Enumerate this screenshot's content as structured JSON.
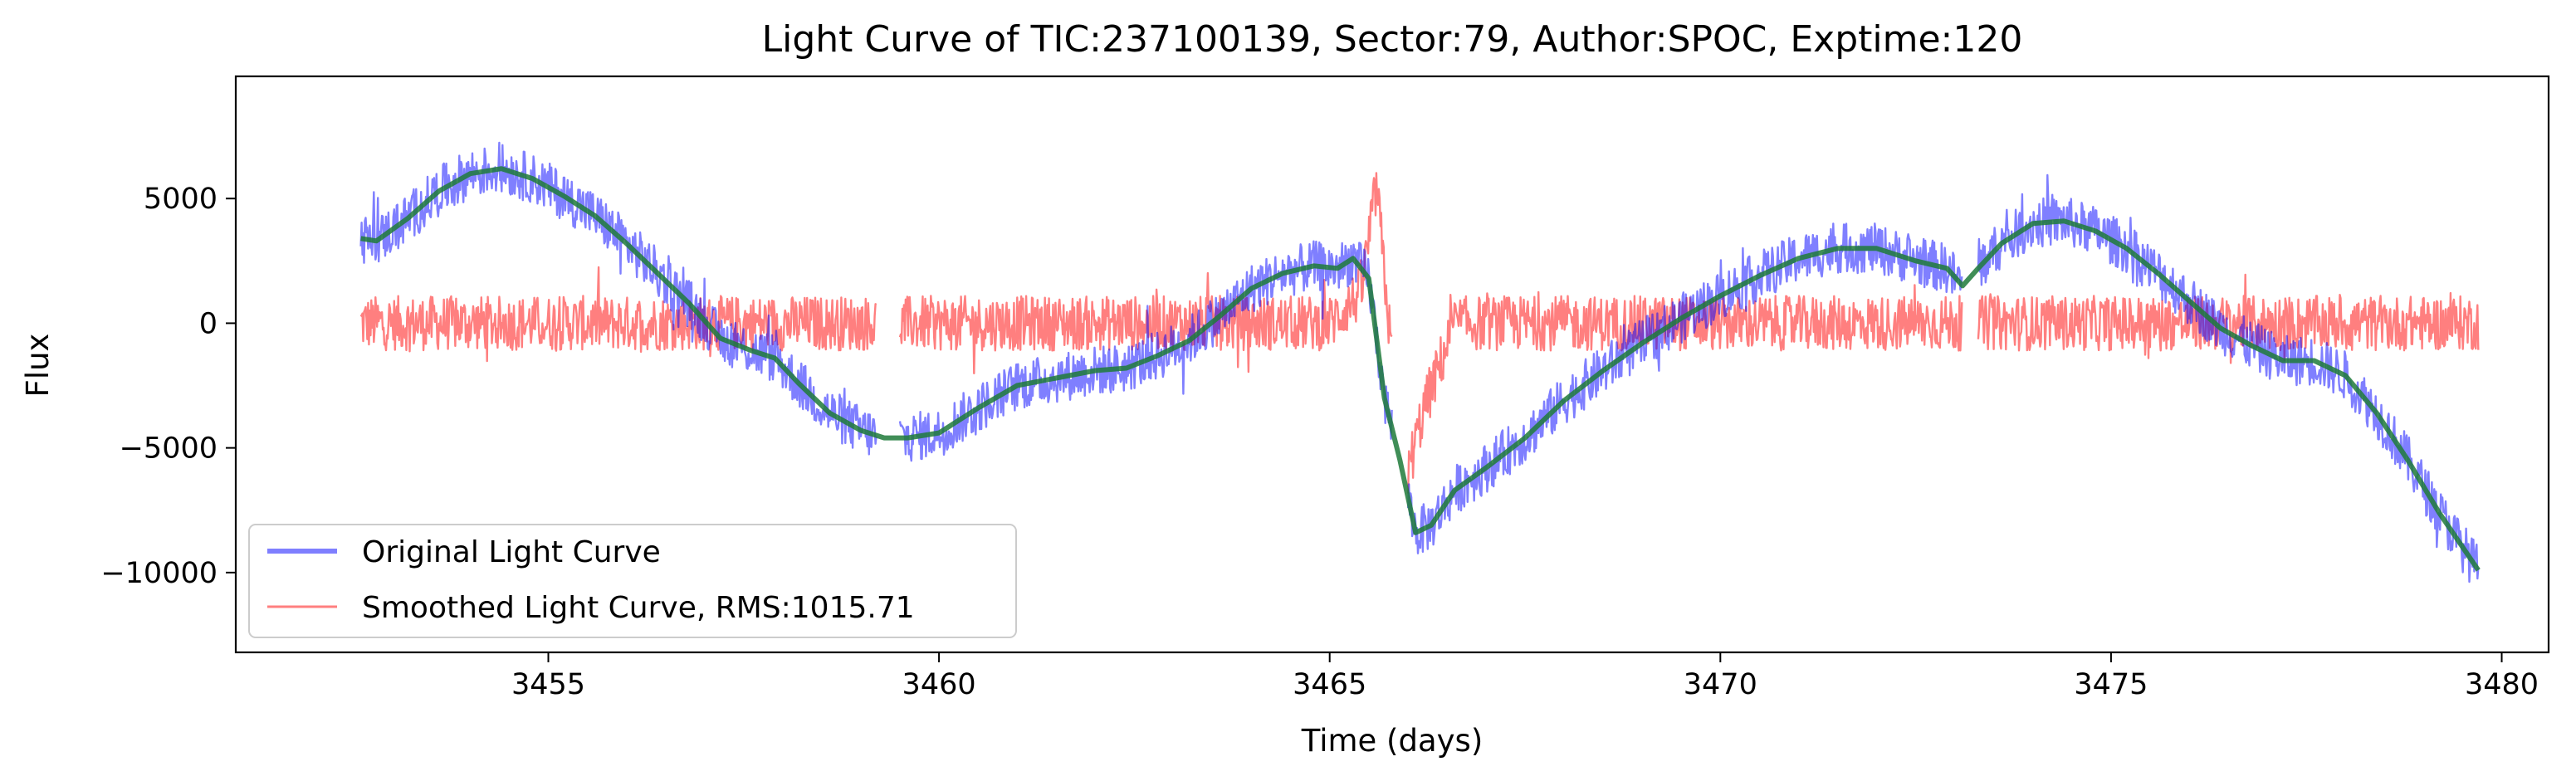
{
  "chart_data": {
    "type": "line",
    "title": "Light Curve of TIC:237100139, Sector:79, Author:SPOC, Exptime:120",
    "xlabel": "Time (days)",
    "ylabel": "Flux",
    "xlim": [
      3451.0,
      3480.6
    ],
    "ylim": [
      -13200,
      9900
    ],
    "xticks": [
      3455,
      3460,
      3465,
      3470,
      3475,
      3480
    ],
    "xtick_labels": [
      "3455",
      "3460",
      "3465",
      "3470",
      "3475",
      "3480"
    ],
    "yticks": [
      5000,
      0,
      -5000,
      -10000
    ],
    "ytick_labels": [
      "5000",
      "0",
      "−5000",
      "−10000"
    ],
    "grid": false,
    "legend_position": "lower-left",
    "series": [
      {
        "name": "Original Light Curve",
        "color": "#0000ff",
        "opacity": 0.5,
        "noise_band": 1000,
        "x": [
          3452.6,
          3452.8,
          3453.2,
          3453.6,
          3454.0,
          3454.4,
          3454.8,
          3455.2,
          3455.6,
          3456.0,
          3456.4,
          3456.8,
          3457.2,
          3457.6,
          3457.9,
          3458.2,
          3458.6,
          3459.0,
          3459.3,
          3459.6,
          3460.0,
          3460.5,
          3461.0,
          3461.5,
          3462.0,
          3462.4,
          3462.8,
          3463.2,
          3463.6,
          3464.0,
          3464.4,
          3464.8,
          3465.1,
          3465.3,
          3465.5,
          3465.7,
          3465.9,
          3466.1,
          3466.3,
          3466.6,
          3467.0,
          3467.5,
          3468.0,
          3468.5,
          3469.0,
          3469.5,
          3470.0,
          3470.5,
          3471.0,
          3471.5,
          3472.0,
          3472.5,
          3472.9,
          3473.1,
          3473.3,
          3473.6,
          3474.0,
          3474.4,
          3474.8,
          3475.2,
          3475.6,
          3476.0,
          3476.4,
          3476.8,
          3477.2,
          3477.6,
          3478.0,
          3478.4,
          3478.8,
          3479.2,
          3479.7
        ],
        "values": [
          3400,
          3300,
          4200,
          5300,
          6000,
          6200,
          5800,
          5100,
          4300,
          3200,
          2000,
          800,
          -600,
          -1100,
          -1400,
          -2400,
          -3600,
          -4300,
          -4600,
          -4600,
          -4400,
          -3400,
          -2500,
          -2200,
          -1900,
          -1800,
          -1300,
          -700,
          300,
          1400,
          2000,
          2300,
          2200,
          2600,
          1800,
          -3000,
          -5500,
          -8400,
          -8100,
          -6700,
          -5800,
          -4600,
          -3100,
          -1900,
          -800,
          200,
          1100,
          1900,
          2600,
          3000,
          3000,
          2500,
          2200,
          1500,
          2200,
          3200,
          4000,
          4100,
          3700,
          3000,
          2000,
          900,
          -200,
          -900,
          -1500,
          -1500,
          -2100,
          -3600,
          -5500,
          -7600,
          -9900
        ]
      },
      {
        "name": "Smoothed Light Curve, RMS:1015.71",
        "color": "#ff0000",
        "opacity": 0.5,
        "noise_band": 1100,
        "x": [
          3452.6,
          3453.5,
          3454.5,
          3455.5,
          3456.5,
          3457.5,
          3458.5,
          3459.2,
          3459.5,
          3460.5,
          3461.5,
          3462.5,
          3463.5,
          3464.5,
          3465.0,
          3465.4,
          3465.6,
          3465.8,
          3466.0,
          3466.2,
          3466.6,
          3467.5,
          3468.5,
          3469.5,
          3470.5,
          3471.5,
          3472.5,
          3473.2,
          3474.0,
          3475.0,
          3476.0,
          3477.0,
          3478.0,
          3479.0,
          3479.7
        ],
        "values": [
          0,
          0,
          0,
          0,
          0,
          0,
          0,
          0,
          0,
          0,
          0,
          0,
          0,
          0,
          0,
          1200,
          5500,
          -1500,
          -6000,
          -3500,
          0,
          0,
          0,
          0,
          0,
          0,
          0,
          0,
          0,
          0,
          0,
          0,
          0,
          0,
          0
        ]
      },
      {
        "name": "",
        "color": "#1e7a3a",
        "opacity": 0.85,
        "noise_band": 0,
        "x": [
          3452.6,
          3452.8,
          3453.2,
          3453.6,
          3454.0,
          3454.4,
          3454.8,
          3455.2,
          3455.6,
          3456.0,
          3456.4,
          3456.8,
          3457.2,
          3457.6,
          3457.9,
          3458.2,
          3458.6,
          3459.0,
          3459.3,
          3459.6,
          3460.0,
          3460.5,
          3461.0,
          3461.5,
          3462.0,
          3462.4,
          3462.8,
          3463.2,
          3463.6,
          3464.0,
          3464.4,
          3464.8,
          3465.1,
          3465.3,
          3465.5,
          3465.7,
          3465.9,
          3466.1,
          3466.3,
          3466.6,
          3467.0,
          3467.5,
          3468.0,
          3468.5,
          3469.0,
          3469.5,
          3470.0,
          3470.5,
          3471.0,
          3471.5,
          3472.0,
          3472.5,
          3472.9,
          3473.1,
          3473.3,
          3473.6,
          3474.0,
          3474.4,
          3474.8,
          3475.2,
          3475.6,
          3476.0,
          3476.4,
          3476.8,
          3477.2,
          3477.6,
          3478.0,
          3478.4,
          3478.8,
          3479.2,
          3479.7
        ],
        "values": [
          3400,
          3300,
          4200,
          5300,
          6000,
          6200,
          5800,
          5100,
          4300,
          3200,
          2000,
          800,
          -600,
          -1100,
          -1400,
          -2400,
          -3600,
          -4300,
          -4600,
          -4600,
          -4400,
          -3400,
          -2500,
          -2200,
          -1900,
          -1800,
          -1300,
          -700,
          300,
          1400,
          2000,
          2300,
          2200,
          2600,
          1800,
          -3000,
          -5500,
          -8400,
          -8100,
          -6700,
          -5800,
          -4600,
          -3100,
          -1900,
          -800,
          200,
          1100,
          1900,
          2600,
          3000,
          3000,
          2500,
          2200,
          1500,
          2200,
          3200,
          4000,
          4100,
          3700,
          3000,
          2000,
          900,
          -200,
          -900,
          -1500,
          -1500,
          -2100,
          -3600,
          -5500,
          -7600,
          -9900
        ]
      }
    ],
    "legend": [
      {
        "label": "Original Light Curve",
        "color": "#0000ff",
        "opacity": 0.5,
        "line": "thick"
      },
      {
        "label": "Smoothed Light Curve, RMS:1015.71",
        "color": "#ff0000",
        "opacity": 0.5,
        "line": "thin"
      }
    ]
  }
}
